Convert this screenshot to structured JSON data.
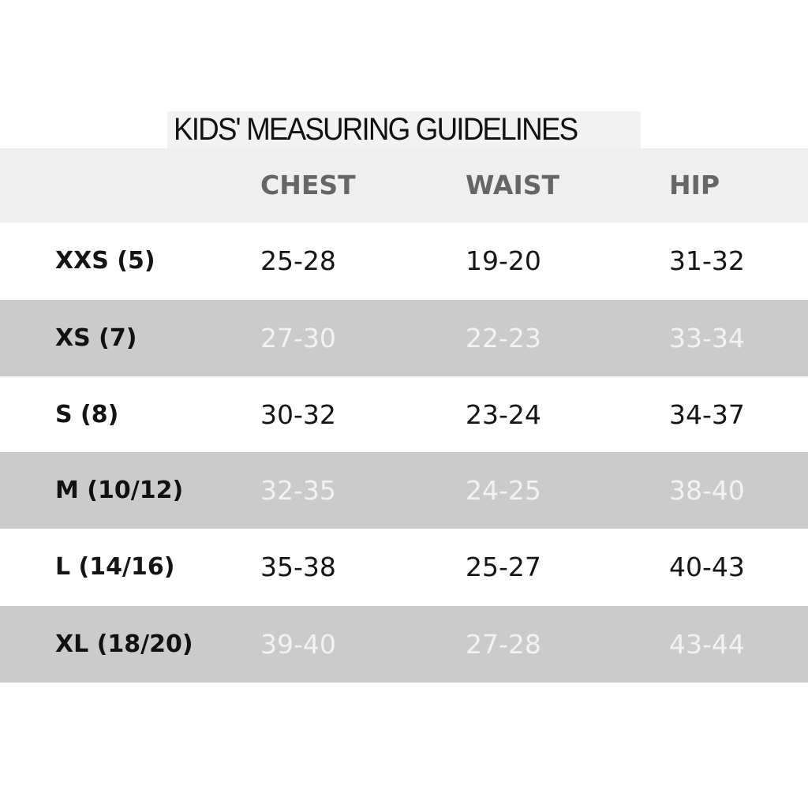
{
  "title": "KIDS' MEASURING GUIDELINES",
  "columns": [
    "CHEST",
    "WAIST",
    "HIP"
  ],
  "colors": {
    "header_bg": "#efefef",
    "alt_row_bg": "#cbcbcb",
    "header_text": "#666666",
    "alt_row_text": "#f2f2f2"
  },
  "rows": [
    {
      "size": "XXS (5)",
      "chest": "25-28",
      "waist": "19-20",
      "hip": "31-32"
    },
    {
      "size": "XS (7)",
      "chest": "27-30",
      "waist": "22-23",
      "hip": "33-34"
    },
    {
      "size": "S (8)",
      "chest": "30-32",
      "waist": "23-24",
      "hip": "34-37"
    },
    {
      "size": "M (10/12)",
      "chest": "32-35",
      "waist": "24-25",
      "hip": "38-40"
    },
    {
      "size": "L (14/16)",
      "chest": "35-38",
      "waist": "25-27",
      "hip": "40-43"
    },
    {
      "size": "XL (18/20)",
      "chest": "39-40",
      "waist": "27-28",
      "hip": "43-44"
    }
  ]
}
